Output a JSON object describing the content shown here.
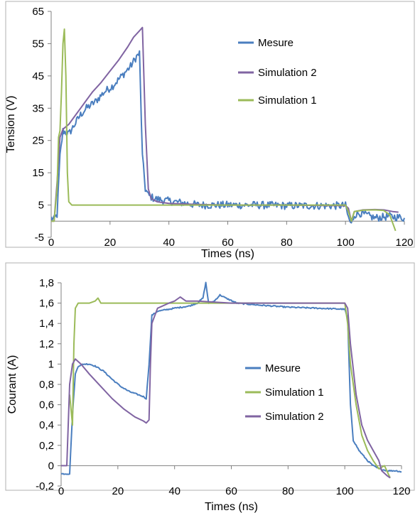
{
  "chart_data": [
    {
      "type": "line",
      "xlabel": "Times (ns)",
      "ylabel": "Tension (V)",
      "xlim": [
        0,
        120
      ],
      "ylim": [
        -5,
        65
      ],
      "x_ticks": [
        "0",
        "20",
        "40",
        "60",
        "80",
        "100",
        "120"
      ],
      "y_ticks": [
        "-5",
        "5",
        "15",
        "25",
        "35",
        "45",
        "55",
        "65"
      ],
      "legend_position": "right",
      "series": [
        {
          "name": "Mesure",
          "color": "#4a7ebf",
          "noise": 1.2,
          "points": [
            [
              0,
              1
            ],
            [
              1,
              0.5
            ],
            [
              2,
              2
            ],
            [
              3,
              20
            ],
            [
              4,
              28
            ],
            [
              6,
              27
            ],
            [
              8,
              30
            ],
            [
              10,
              33
            ],
            [
              12,
              35
            ],
            [
              15,
              37
            ],
            [
              18,
              40
            ],
            [
              21,
              42
            ],
            [
              24,
              45
            ],
            [
              27,
              48
            ],
            [
              29,
              51
            ],
            [
              30,
              52
            ],
            [
              31,
              20
            ],
            [
              32,
              10
            ],
            [
              33,
              8
            ],
            [
              35,
              7
            ],
            [
              38,
              6.5
            ],
            [
              42,
              6
            ],
            [
              46,
              5.5
            ],
            [
              50,
              5
            ],
            [
              55,
              5
            ],
            [
              60,
              5
            ],
            [
              70,
              5
            ],
            [
              80,
              4.8
            ],
            [
              90,
              4.8
            ],
            [
              100,
              4.8
            ],
            [
              101,
              1
            ],
            [
              102,
              -1
            ],
            [
              103,
              2
            ],
            [
              105,
              2.5
            ],
            [
              110,
              1
            ],
            [
              115,
              1.5
            ],
            [
              120,
              1
            ]
          ]
        },
        {
          "name": "Simulation 2",
          "color": "#8064a2",
          "noise": 0,
          "points": [
            [
              0,
              0
            ],
            [
              1,
              0
            ],
            [
              2,
              12
            ],
            [
              3,
              26
            ],
            [
              4,
              28.5
            ],
            [
              6,
              30
            ],
            [
              8,
              32.5
            ],
            [
              10,
              35
            ],
            [
              12,
              37.5
            ],
            [
              14,
              40
            ],
            [
              17,
              43
            ],
            [
              20,
              46.5
            ],
            [
              23,
              50
            ],
            [
              26,
              54
            ],
            [
              28,
              57
            ],
            [
              30,
              59
            ],
            [
              31,
              60
            ],
            [
              32,
              30
            ],
            [
              33,
              10
            ],
            [
              34,
              7
            ],
            [
              36,
              6
            ],
            [
              40,
              5.5
            ],
            [
              50,
              5.2
            ],
            [
              60,
              5
            ],
            [
              80,
              5
            ],
            [
              100,
              4.8
            ],
            [
              101,
              4
            ],
            [
              102,
              0
            ],
            [
              103,
              3
            ],
            [
              106,
              3.5
            ],
            [
              110,
              3.6
            ],
            [
              113,
              3.5
            ],
            [
              116,
              3
            ],
            [
              118,
              2.8
            ]
          ]
        },
        {
          "name": "Simulation 1",
          "color": "#9bbb59",
          "noise": 0,
          "points": [
            [
              0,
              0
            ],
            [
              1,
              0
            ],
            [
              2,
              10
            ],
            [
              2.5,
              26
            ],
            [
              3,
              28
            ],
            [
              3.5,
              40
            ],
            [
              4,
              55
            ],
            [
              4.5,
              59.5
            ],
            [
              5,
              45
            ],
            [
              5.5,
              15
            ],
            [
              6,
              6
            ],
            [
              7,
              5
            ],
            [
              12,
              5
            ],
            [
              30,
              5
            ],
            [
              60,
              5
            ],
            [
              80,
              5
            ],
            [
              100,
              5
            ],
            [
              101,
              3
            ],
            [
              102,
              0
            ],
            [
              103,
              3
            ],
            [
              106,
              3.4
            ],
            [
              110,
              3.5
            ],
            [
              113,
              3.3
            ],
            [
              115,
              2
            ],
            [
              117,
              -3
            ]
          ]
        }
      ]
    },
    {
      "type": "line",
      "xlabel": "Times (ns)",
      "ylabel": "Courant (A)",
      "xlim": [
        0,
        120
      ],
      "ylim": [
        -0.2,
        1.8
      ],
      "x_ticks": [
        "0",
        "20",
        "40",
        "60",
        "80",
        "100",
        "120"
      ],
      "y_ticks": [
        "-0,2",
        "0",
        "0,2",
        "0,4",
        "0,6",
        "0,8",
        "1",
        "1,2",
        "1,4",
        "1,6",
        "1,8"
      ],
      "legend_position": "right",
      "series": [
        {
          "name": "Mesure",
          "color": "#4a7ebf",
          "noise": 0.006,
          "points": [
            [
              0,
              -0.08
            ],
            [
              3,
              -0.08
            ],
            [
              4,
              0.5
            ],
            [
              5,
              0.9
            ],
            [
              6,
              0.98
            ],
            [
              8,
              1.0
            ],
            [
              10,
              1.0
            ],
            [
              12,
              0.98
            ],
            [
              15,
              0.93
            ],
            [
              18,
              0.85
            ],
            [
              21,
              0.78
            ],
            [
              24,
              0.73
            ],
            [
              27,
              0.7
            ],
            [
              29,
              0.68
            ],
            [
              30,
              0.66
            ],
            [
              31,
              1.0
            ],
            [
              32,
              1.48
            ],
            [
              34,
              1.52
            ],
            [
              40,
              1.55
            ],
            [
              45,
              1.57
            ],
            [
              48,
              1.6
            ],
            [
              50,
              1.65
            ],
            [
              51,
              1.8
            ],
            [
              52,
              1.6
            ],
            [
              54,
              1.62
            ],
            [
              56,
              1.68
            ],
            [
              58,
              1.65
            ],
            [
              62,
              1.6
            ],
            [
              70,
              1.58
            ],
            [
              80,
              1.56
            ],
            [
              90,
              1.55
            ],
            [
              100,
              1.54
            ],
            [
              101,
              1.45
            ],
            [
              102,
              0.6
            ],
            [
              103,
              0.25
            ],
            [
              105,
              0.15
            ],
            [
              108,
              0.05
            ],
            [
              110,
              0.0
            ],
            [
              112,
              -0.03
            ],
            [
              115,
              -0.05
            ],
            [
              118,
              -0.05
            ],
            [
              120,
              -0.06
            ]
          ]
        },
        {
          "name": "Simulation 1",
          "color": "#9bbb59",
          "noise": 0,
          "points": [
            [
              3,
              0.7
            ],
            [
              4,
              0.4
            ],
            [
              4.5,
              1.2
            ],
            [
              5,
              1.55
            ],
            [
              6,
              1.6
            ],
            [
              10,
              1.6
            ],
            [
              12,
              1.62
            ],
            [
              13,
              1.65
            ],
            [
              14,
              1.6
            ],
            [
              20,
              1.6
            ],
            [
              40,
              1.6
            ],
            [
              60,
              1.6
            ],
            [
              80,
              1.6
            ],
            [
              100,
              1.6
            ],
            [
              101,
              1.4
            ],
            [
              102,
              1.0
            ],
            [
              104,
              0.6
            ],
            [
              106,
              0.3
            ],
            [
              108,
              0.15
            ],
            [
              110,
              0.05
            ],
            [
              112,
              -0.03
            ],
            [
              114,
              0.0
            ],
            [
              116,
              -0.12
            ]
          ]
        },
        {
          "name": "Simulation 2",
          "color": "#8064a2",
          "noise": 0,
          "points": [
            [
              0,
              0
            ],
            [
              2,
              0
            ],
            [
              3,
              0.8
            ],
            [
              4,
              1.0
            ],
            [
              5,
              1.05
            ],
            [
              7,
              1.0
            ],
            [
              10,
              0.9
            ],
            [
              14,
              0.78
            ],
            [
              18,
              0.66
            ],
            [
              22,
              0.56
            ],
            [
              26,
              0.48
            ],
            [
              29,
              0.44
            ],
            [
              30,
              0.42
            ],
            [
              31,
              0.45
            ],
            [
              31.5,
              1.0
            ],
            [
              32,
              1.4
            ],
            [
              34,
              1.55
            ],
            [
              38,
              1.6
            ],
            [
              40,
              1.62
            ],
            [
              42,
              1.66
            ],
            [
              44,
              1.62
            ],
            [
              48,
              1.62
            ],
            [
              60,
              1.6
            ],
            [
              80,
              1.6
            ],
            [
              100,
              1.6
            ],
            [
              101,
              1.55
            ],
            [
              102,
              1.2
            ],
            [
              104,
              0.7
            ],
            [
              106,
              0.4
            ],
            [
              108,
              0.25
            ],
            [
              110,
              0.15
            ],
            [
              112,
              0.05
            ],
            [
              113,
              -0.05
            ],
            [
              115,
              -0.1
            ],
            [
              116,
              -0.12
            ]
          ]
        }
      ]
    }
  ]
}
